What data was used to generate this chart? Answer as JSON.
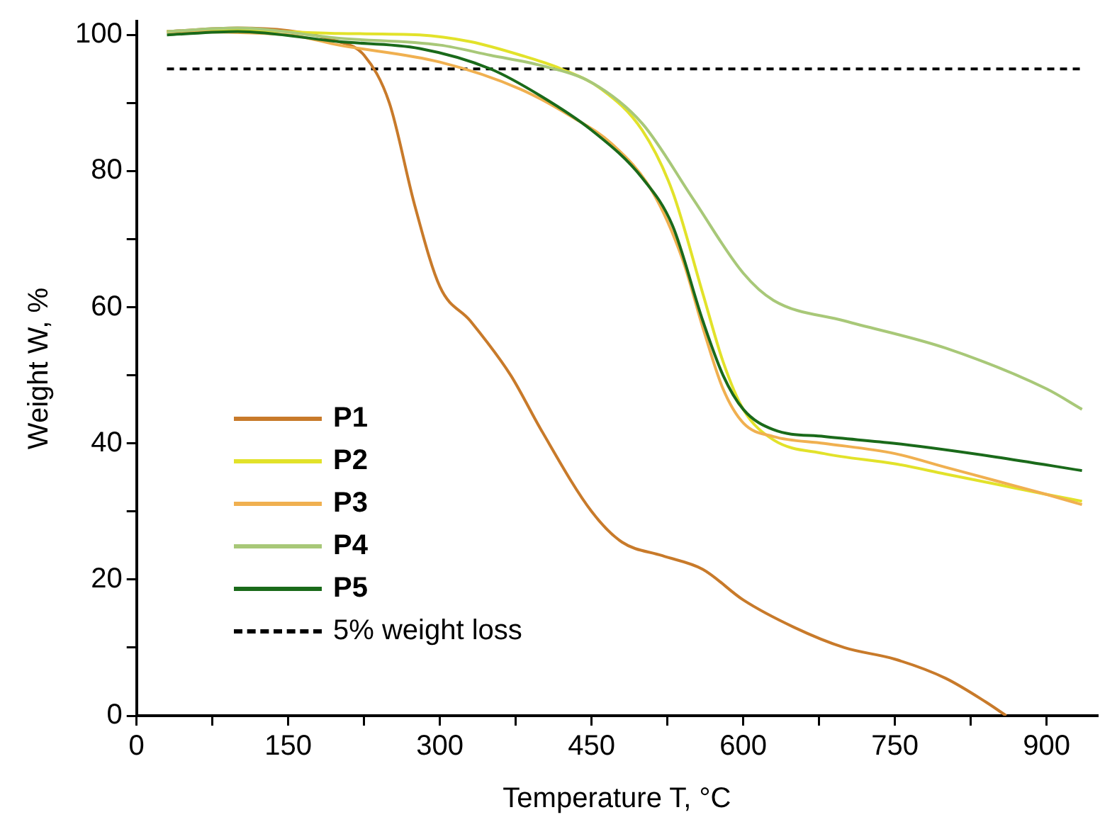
{
  "chart_data": {
    "type": "line",
    "xlabel": "Temperature T, °C",
    "ylabel": "Weight W, %",
    "xlim": [
      0,
      950
    ],
    "ylim": [
      0,
      102
    ],
    "xticks": [
      0,
      {
        "value": 75,
        "label": null
      },
      150,
      {
        "value": 225,
        "label": null
      },
      300,
      {
        "value": 375,
        "label": null
      },
      450,
      {
        "value": 525,
        "label": null
      },
      600,
      {
        "value": 675,
        "label": null
      },
      750,
      {
        "value": 825,
        "label": null
      },
      900
    ],
    "yticks": [
      0,
      {
        "value": 10,
        "label": null
      },
      20,
      {
        "value": 30,
        "label": null
      },
      40,
      {
        "value": 50,
        "label": null
      },
      60,
      {
        "value": 70,
        "label": null
      },
      80,
      {
        "value": 90,
        "label": null
      },
      100
    ],
    "grid": false,
    "legend": "bottom left",
    "marker": "none",
    "line_style": "solid",
    "series": [
      {
        "name": "P1",
        "color": "#c87a2a",
        "x": [
          30,
          100,
          200,
          225,
          250,
          275,
          300,
          330,
          370,
          400,
          450,
          480,
          520,
          560,
          600,
          650,
          700,
          750,
          800,
          840,
          860
        ],
        "values": [
          100.5,
          101,
          99,
          97,
          90,
          75,
          63,
          58,
          50,
          42,
          30,
          25.5,
          23.5,
          21.5,
          17,
          13,
          10,
          8.3,
          5.5,
          2,
          0
        ]
      },
      {
        "name": "P2",
        "color": "#e2e22a",
        "x": [
          30,
          100,
          200,
          280,
          330,
          380,
          420,
          460,
          500,
          530,
          560,
          580,
          600,
          630,
          680,
          750,
          800,
          850,
          900,
          935
        ],
        "values": [
          100.5,
          100.7,
          100.2,
          100,
          99,
          97,
          95,
          92,
          86,
          77,
          62,
          52,
          45,
          40.5,
          38.5,
          37,
          35.5,
          34,
          32.5,
          31.5
        ]
      },
      {
        "name": "P3",
        "color": "#f0b050",
        "x": [
          30,
          150,
          200,
          300,
          380,
          430,
          470,
          510,
          540,
          560,
          580,
          600,
          630,
          680,
          750,
          800,
          850,
          900,
          935
        ],
        "values": [
          100.5,
          100,
          98.5,
          96,
          92,
          88,
          84,
          77,
          67,
          57,
          48,
          43,
          41,
          40,
          38.5,
          36.5,
          34.5,
          32.5,
          31
        ]
      },
      {
        "name": "P4",
        "color": "#a8c878",
        "x": [
          30,
          100,
          200,
          300,
          350,
          400,
          450,
          500,
          550,
          600,
          630,
          700,
          800,
          900,
          935
        ],
        "values": [
          100.5,
          101,
          99.5,
          98.5,
          97,
          95.5,
          93,
          87,
          76,
          65,
          61,
          58,
          54,
          48,
          45
        ]
      },
      {
        "name": "P5",
        "color": "#1a6a1a",
        "x": [
          30,
          100,
          200,
          280,
          350,
          400,
          450,
          500,
          530,
          560,
          580,
          600,
          630,
          680,
          750,
          850,
          935
        ],
        "values": [
          100,
          100.5,
          99,
          98,
          95,
          91,
          86,
          79,
          72,
          58,
          50,
          45,
          42,
          41,
          40,
          38,
          36
        ]
      }
    ],
    "ref_lines": [
      {
        "axis": "y",
        "value": 95,
        "label": "5% weight loss",
        "color": "#000000",
        "line_style": "dashed"
      }
    ]
  }
}
